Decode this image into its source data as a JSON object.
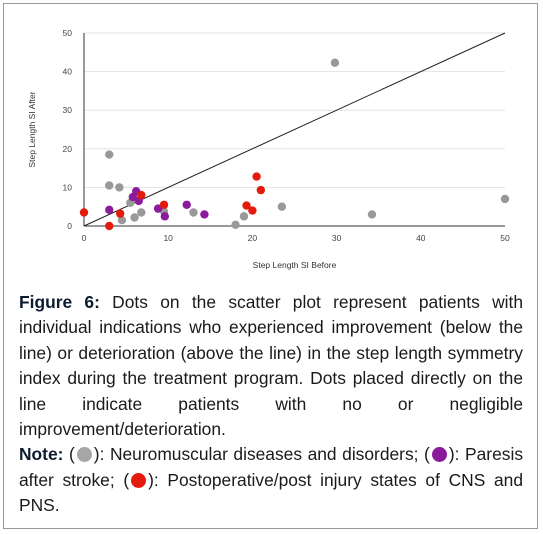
{
  "chart_data": {
    "type": "scatter",
    "xlabel": "Step Length SI Before",
    "ylabel": "Step Length SI After",
    "xlim": [
      0,
      50
    ],
    "ylim": [
      0,
      50
    ],
    "xticks": [
      "0",
      "10",
      "20",
      "30",
      "40",
      "50"
    ],
    "yticks": [
      "0",
      "10",
      "20",
      "30",
      "40",
      "50"
    ],
    "grid": "horizontal",
    "reference_line": {
      "from": [
        0,
        0
      ],
      "to": [
        50,
        50
      ]
    },
    "series": [
      {
        "color": "#999999",
        "points": [
          [
            3.0,
            18.5
          ],
          [
            3.0,
            10.5
          ],
          [
            4.2,
            10.0
          ],
          [
            4.5,
            1.5
          ],
          [
            5.5,
            6.0
          ],
          [
            6.0,
            2.2
          ],
          [
            6.8,
            3.5
          ],
          [
            9.5,
            3.8
          ],
          [
            13.0,
            3.5
          ],
          [
            18.0,
            0.3
          ],
          [
            19.0,
            2.5
          ],
          [
            23.5,
            5.0
          ],
          [
            29.8,
            42.3
          ],
          [
            34.2,
            3.0
          ],
          [
            50.0,
            7.0
          ]
        ]
      },
      {
        "color": "#8b1a9c",
        "points": [
          [
            3.0,
            4.2
          ],
          [
            5.8,
            7.5
          ],
          [
            6.2,
            9.0
          ],
          [
            6.5,
            6.5
          ],
          [
            8.8,
            4.5
          ],
          [
            9.6,
            2.5
          ],
          [
            12.2,
            5.5
          ],
          [
            14.3,
            3.0
          ]
        ]
      },
      {
        "color": "#e31b0c",
        "points": [
          [
            0.0,
            3.5
          ],
          [
            3.0,
            0.0
          ],
          [
            4.3,
            3.2
          ],
          [
            6.8,
            8.0
          ],
          [
            9.5,
            5.5
          ],
          [
            19.3,
            5.3
          ],
          [
            20.0,
            4.0
          ],
          [
            20.5,
            12.8
          ],
          [
            21.0,
            9.3
          ]
        ]
      }
    ]
  },
  "caption": {
    "figure_label": "Figure 6:",
    "text": " Dots on the scatter plot represent patients with individual indications who experienced improvement (below the line) or deterioration (above the line) in the step length symmetry index during the treatment program. Dots placed directly on the line indicate patients with no or negligible improvement/deterioration."
  },
  "note": {
    "label": "Note:",
    "items": [
      {
        "color": "#a6a6a6",
        "text": "): Neuromuscular diseases and disorders;"
      },
      {
        "color": "#8b1a9c",
        "text": "): Paresis after stroke;"
      },
      {
        "color": "#e31b0c",
        "text": "): Postoperative/post injury states of CNS and PNS."
      }
    ]
  }
}
